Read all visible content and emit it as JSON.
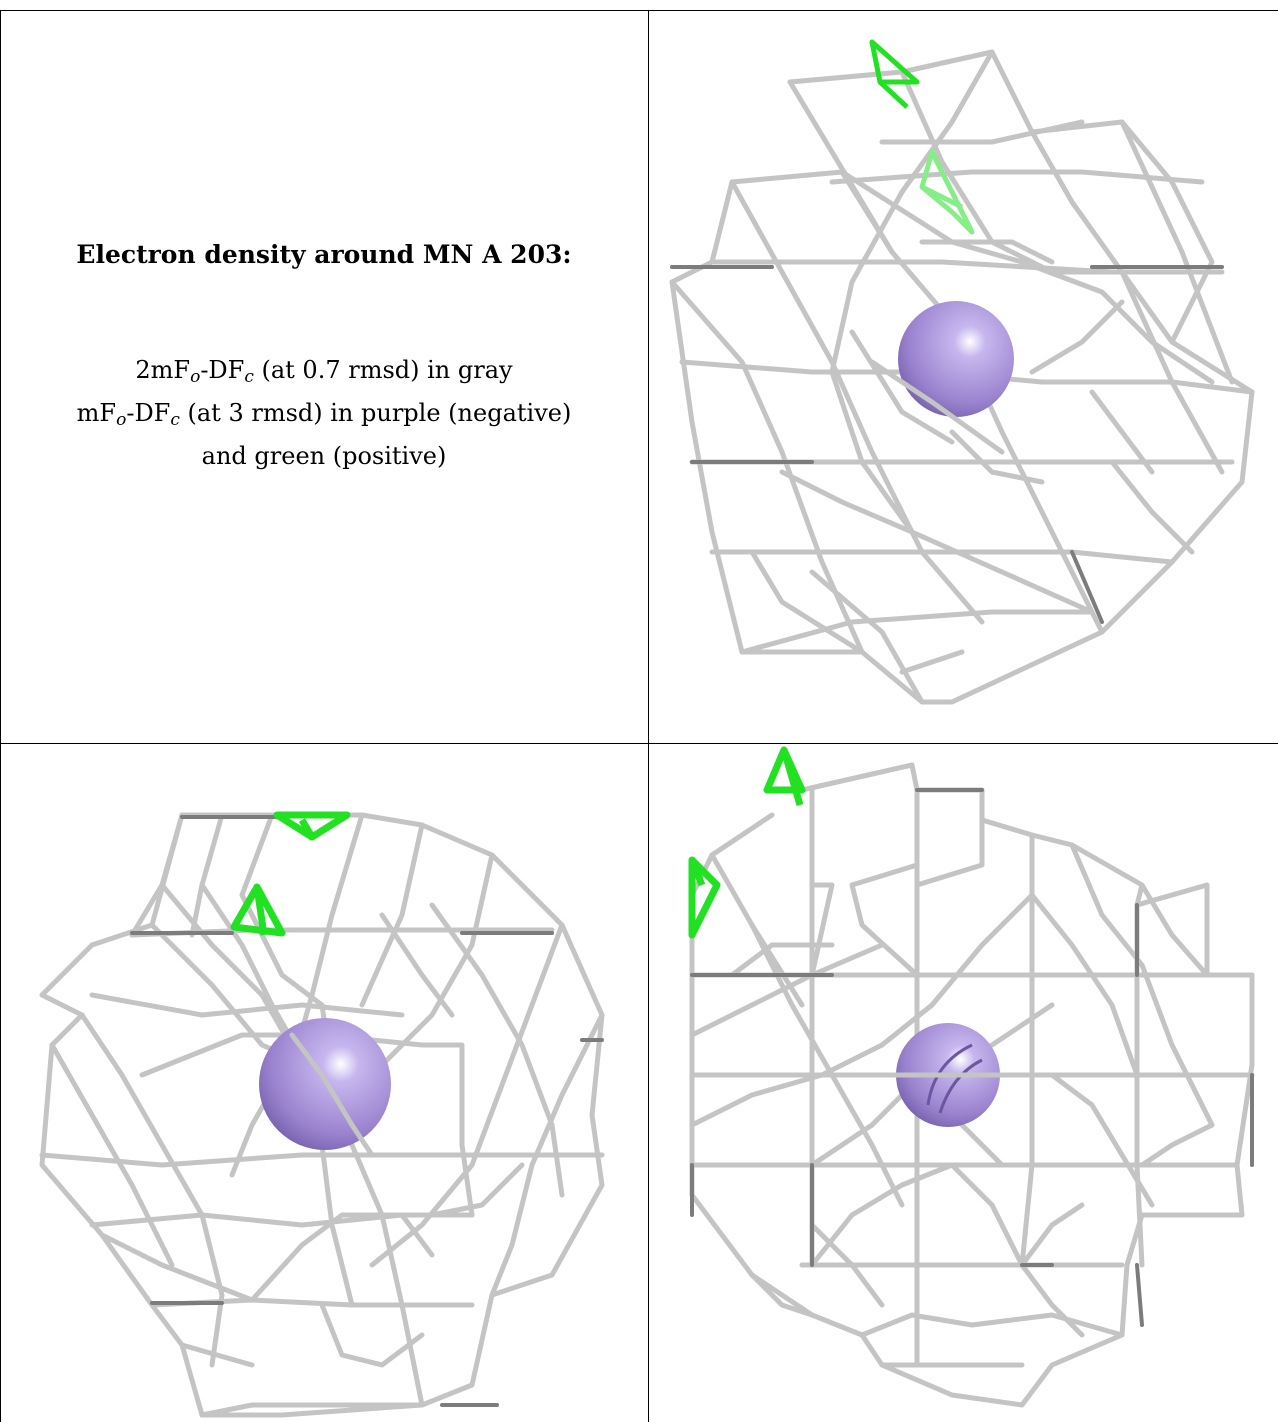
{
  "caption": {
    "title": "Electron density around MN A 203:",
    "line1": {
      "pre": "2mF",
      "sub1": "o",
      "mid": "-DF",
      "sub2": "c",
      "post": " (at 0.7 rmsd) in gray"
    },
    "line2": {
      "pre": "mF",
      "sub1": "o",
      "mid": "-DF",
      "sub2": "c",
      "post": " (at 3 rmsd) in purple (negative)"
    },
    "line3": "and green (positive)"
  },
  "colors": {
    "mesh_gray": "#c4c4c4",
    "mesh_dark": "#7a7a7a",
    "positive_green": "#22e022",
    "negative_purple": "#9a82d6",
    "atom_sphere": "#9b83cf"
  }
}
